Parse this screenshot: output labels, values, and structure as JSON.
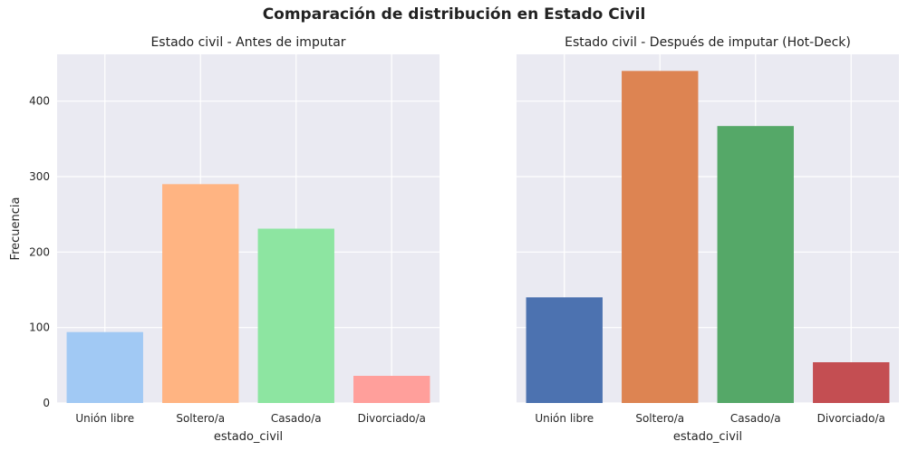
{
  "figure": {
    "title": "Comparación de distribución en Estado Civil"
  },
  "chart_data": [
    {
      "type": "bar",
      "title": "Estado civil - Antes de imputar",
      "xlabel": "estado_civil",
      "ylabel": "Frecuencia",
      "categories": [
        "Unión libre",
        "Soltero/a",
        "Casado/a",
        "Divorciado/a"
      ],
      "values": [
        94,
        290,
        231,
        36
      ],
      "colors": [
        "#a1c9f4",
        "#ffb482",
        "#8de5a1",
        "#ff9f9b"
      ],
      "ylim": [
        0,
        462
      ],
      "yticks": [
        0,
        100,
        200,
        300,
        400
      ],
      "grid": true
    },
    {
      "type": "bar",
      "title": "Estado civil - Después de imputar (Hot-Deck)",
      "xlabel": "estado_civil",
      "ylabel": "",
      "categories": [
        "Unión libre",
        "Soltero/a",
        "Casado/a",
        "Divorciado/a"
      ],
      "values": [
        140,
        440,
        367,
        54
      ],
      "colors": [
        "#4c72b0",
        "#dd8452",
        "#55a868",
        "#c44e52"
      ],
      "ylim": [
        0,
        462
      ],
      "yticks": [
        0,
        100,
        200,
        300,
        400
      ],
      "grid": true
    }
  ]
}
